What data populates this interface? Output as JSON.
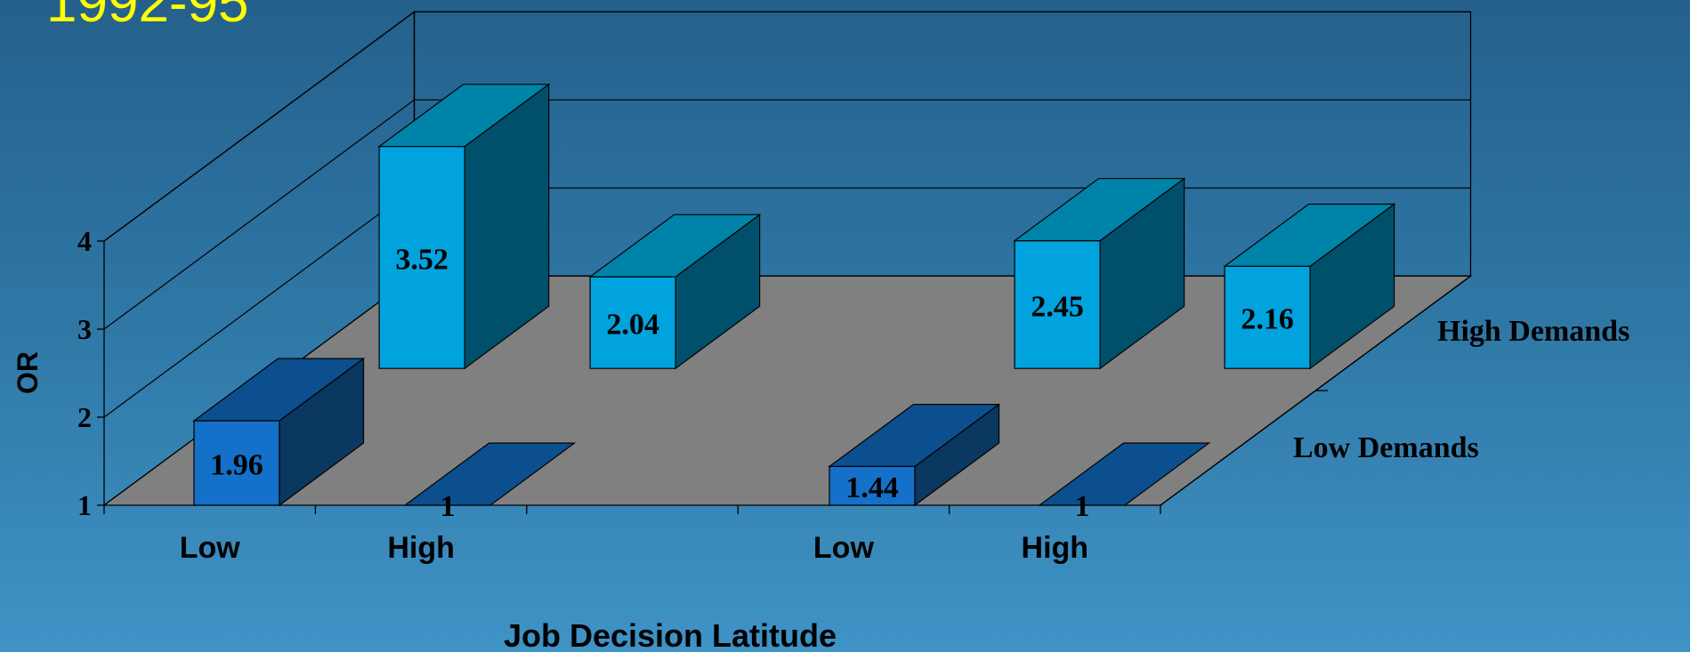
{
  "page_title": "1992-95",
  "colors": {
    "title": "#ffff00",
    "floor": "#808080",
    "high_front": "#00a3dd",
    "high_top": "#0083a8",
    "high_side": "#00506c",
    "low_front": "#1470c8",
    "low_top": "#0c4f8e",
    "low_side": "#0a3860"
  },
  "chart_data": {
    "type": "bar",
    "projection": "3d",
    "title": "",
    "xlabel": "Job Decision Latitude",
    "ylabel": "OR",
    "ylim": [
      1,
      4
    ],
    "yticks": [
      "1",
      "2",
      "3",
      "4"
    ],
    "categories": [
      "Low",
      "High",
      "Low",
      "High"
    ],
    "series": [
      {
        "name": "Low Demands",
        "values": [
          1.96,
          1,
          1.44,
          1
        ],
        "labels": [
          "1.96",
          "1",
          "1.44",
          "1"
        ]
      },
      {
        "name": "High Demands",
        "values": [
          3.52,
          2.04,
          2.45,
          2.16
        ],
        "labels": [
          "3.52",
          "2.04",
          "2.45",
          "2.16"
        ]
      }
    ],
    "grid": true
  }
}
